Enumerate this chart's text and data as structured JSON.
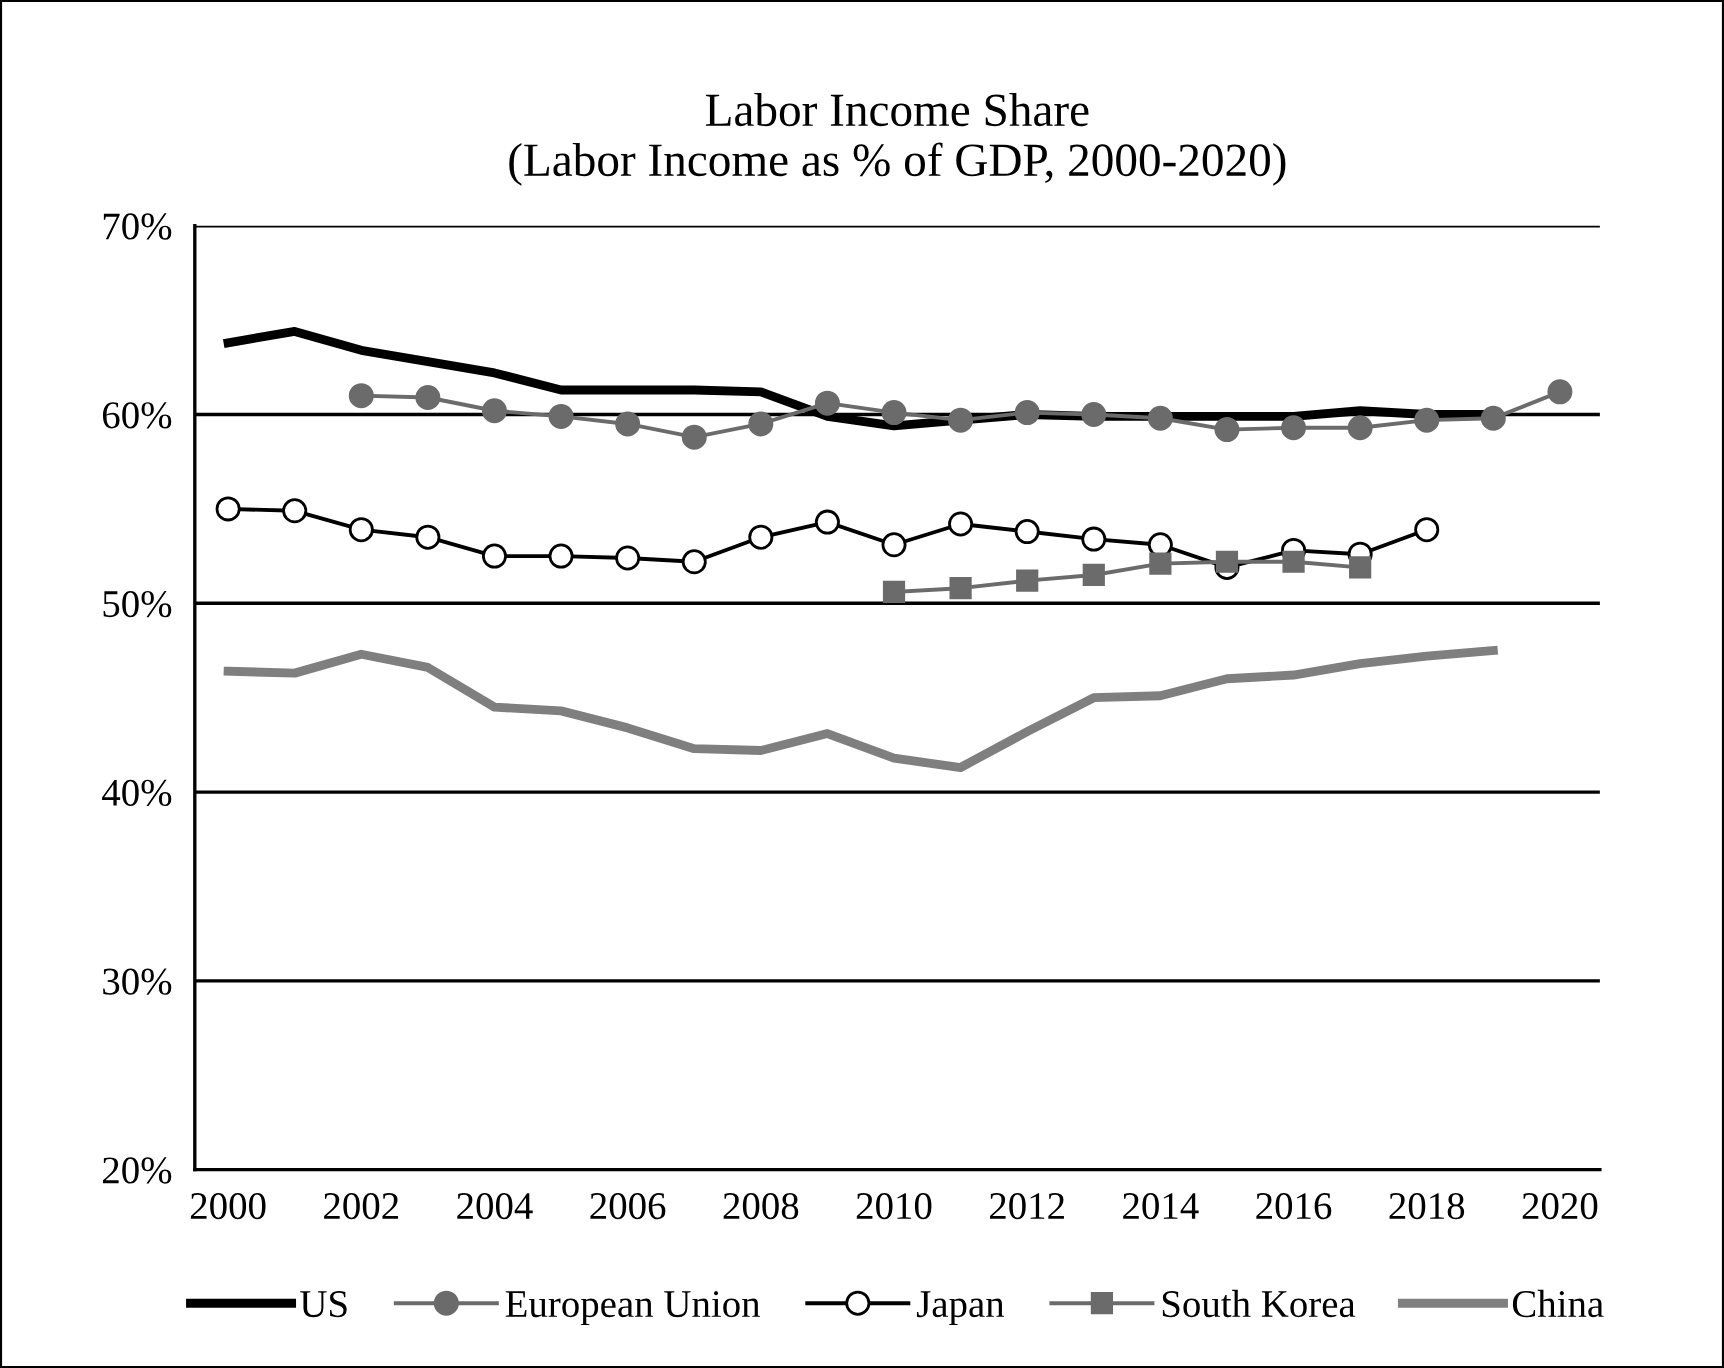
{
  "chart_data": {
    "type": "line",
    "title": "Labor Income Share\n(Labor Income as % of GDP, 2000-2020)",
    "xlim": [
      1999.5,
      2020.6
    ],
    "xticks": [
      2000,
      2002,
      2004,
      2006,
      2008,
      2010,
      2012,
      2014,
      2016,
      2018,
      2020
    ],
    "ylim": [
      20,
      70
    ],
    "yticks": [
      {
        "value": 20,
        "label": "20%"
      },
      {
        "value": 30,
        "label": "30%"
      },
      {
        "value": 40,
        "label": "40%"
      },
      {
        "value": 50,
        "label": "50%"
      },
      {
        "value": 60,
        "label": "60%"
      },
      {
        "value": 70,
        "label": "70%"
      }
    ],
    "grid": "y",
    "legend": "bottom",
    "series": [
      {
        "name": "US",
        "color": "#000000",
        "marker": "none",
        "x": [
          2000,
          2001,
          2002,
          2003,
          2004,
          2005,
          2006,
          2007,
          2008,
          2009,
          2010,
          2011,
          2012,
          2013,
          2014,
          2015,
          2016,
          2017,
          2018,
          2019
        ],
        "values": [
          63.8,
          64.4,
          63.4,
          62.8,
          62.2,
          61.3,
          61.3,
          61.3,
          61.2,
          59.9,
          59.4,
          59.7,
          60.0,
          59.9,
          59.9,
          59.9,
          59.9,
          60.2,
          60.0,
          60.0
        ]
      },
      {
        "name": "European Union",
        "color": "#6b6b6b",
        "marker": "circle",
        "x": [
          2002,
          2003,
          2004,
          2005,
          2006,
          2007,
          2008,
          2009,
          2010,
          2011,
          2012,
          2013,
          2014,
          2015,
          2016,
          2017,
          2018,
          2019,
          2020
        ],
        "values": [
          61.0,
          60.9,
          60.2,
          59.9,
          59.5,
          58.8,
          59.5,
          60.6,
          60.1,
          59.7,
          60.1,
          60.0,
          59.8,
          59.2,
          59.3,
          59.3,
          59.7,
          59.8,
          61.2
        ]
      },
      {
        "name": "Japan",
        "color": "#000000",
        "marker": "circle",
        "x": [
          2000,
          2001,
          2002,
          2003,
          2004,
          2005,
          2006,
          2007,
          2008,
          2009,
          2010,
          2011,
          2012,
          2013,
          2014,
          2015,
          2016,
          2017,
          2018
        ],
        "values": [
          55.0,
          54.9,
          53.9,
          53.5,
          52.5,
          52.5,
          52.4,
          52.2,
          53.5,
          54.3,
          53.1,
          54.2,
          53.8,
          53.4,
          53.1,
          51.9,
          52.8,
          52.6,
          53.9
        ]
      },
      {
        "name": "South Korea",
        "color": "#6b6b6b",
        "marker": "square",
        "x": [
          2010,
          2011,
          2012,
          2013,
          2014,
          2015,
          2016,
          2017
        ],
        "values": [
          50.6,
          50.8,
          51.2,
          51.5,
          52.1,
          52.2,
          52.2,
          51.9
        ]
      },
      {
        "name": "China",
        "color": "#7f7f7f",
        "marker": "none",
        "x": [
          2000,
          2001,
          2002,
          2003,
          2004,
          2005,
          2006,
          2007,
          2008,
          2009,
          2010,
          2011,
          2012,
          2013,
          2014,
          2015,
          2016,
          2017,
          2018,
          2019
        ],
        "values": [
          46.4,
          46.3,
          47.3,
          46.6,
          44.5,
          44.3,
          43.4,
          42.3,
          42.2,
          43.1,
          41.8,
          41.3,
          43.2,
          45.0,
          45.1,
          46.0,
          46.2,
          46.8,
          47.2,
          47.5
        ]
      }
    ]
  }
}
